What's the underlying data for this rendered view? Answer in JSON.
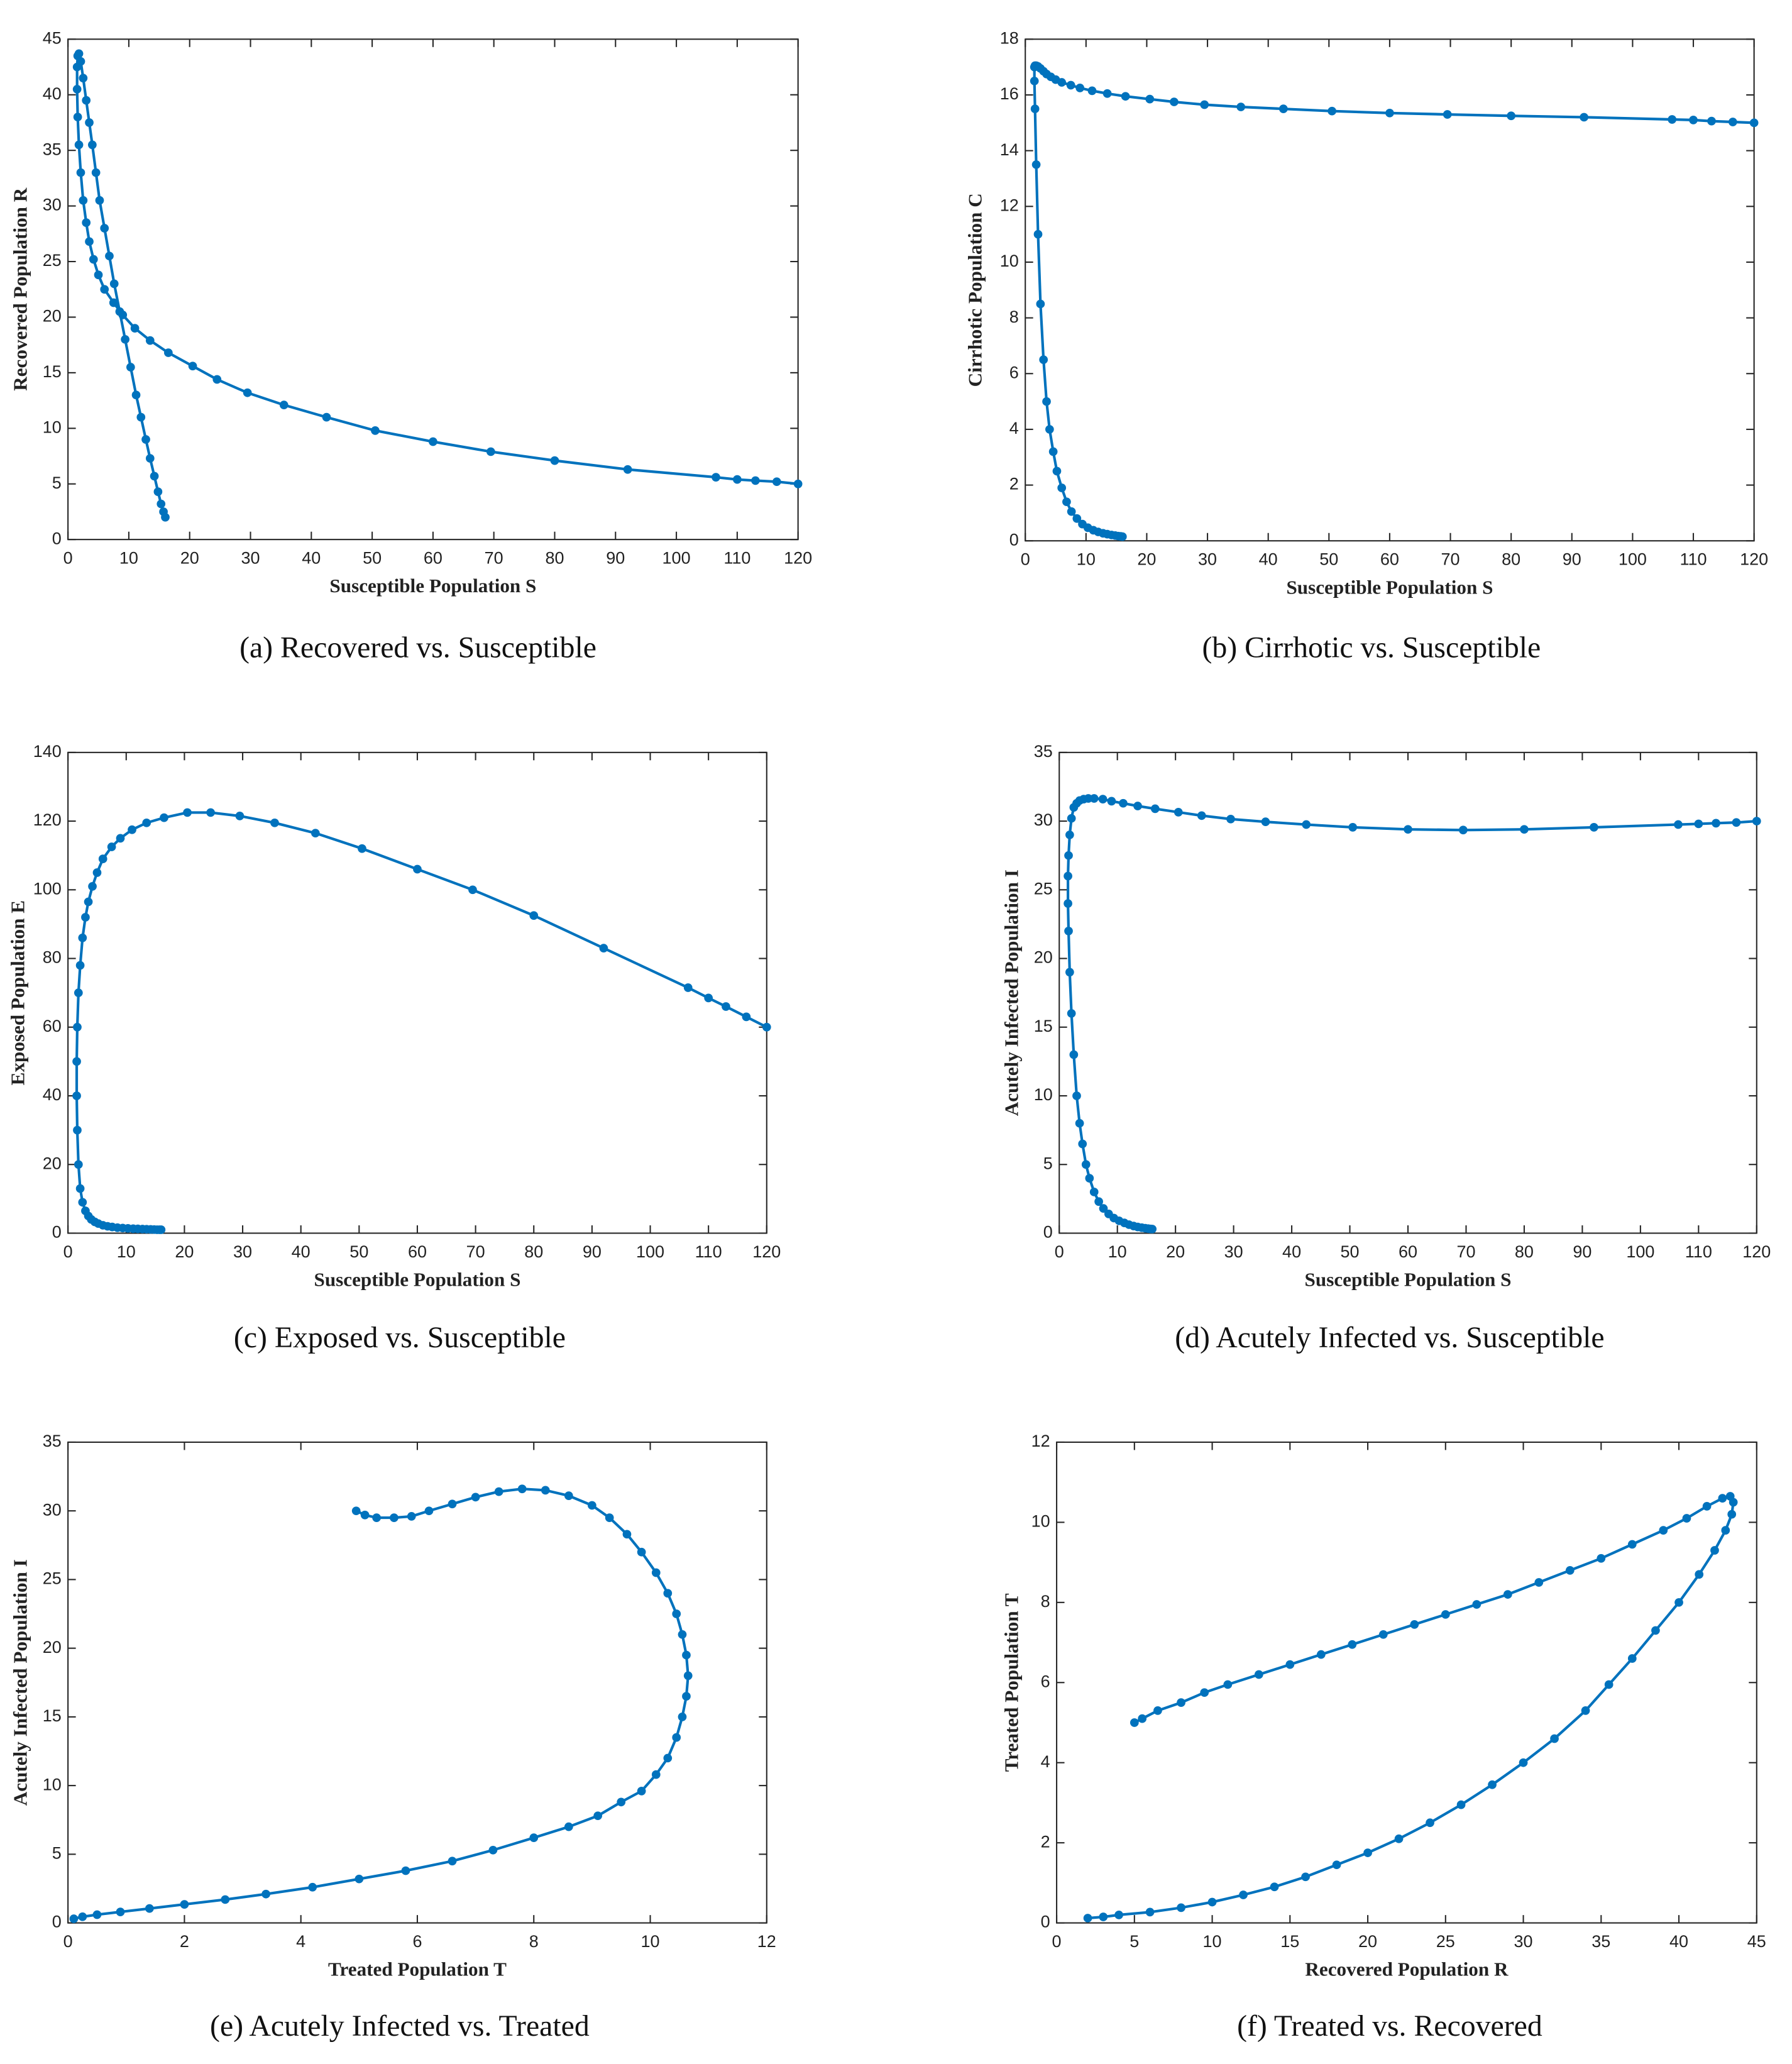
{
  "chart_data": [
    {
      "type": "line",
      "caption": "(a) Recovered vs. Susceptible",
      "x_label": "Susceptible Population S",
      "y_label": "Recovered Population R",
      "color": "#0072bd",
      "markers": true,
      "x": [
        120,
        116.5,
        113,
        110,
        106.5,
        92,
        80,
        69.5,
        60,
        50.5,
        42.5,
        35.5,
        29.5,
        24.5,
        20.5,
        16.5,
        13.5,
        11,
        9,
        7.5,
        6,
        5,
        4.2,
        3.5,
        3,
        2.5,
        2.1,
        1.8,
        1.6,
        1.5,
        1.5,
        1.6,
        1.8,
        2.1,
        2.5,
        3,
        3.5,
        4,
        4.6,
        5.2,
        6,
        6.8,
        7.6,
        8.5,
        9.4,
        10.3,
        11.2,
        12,
        12.8,
        13.5,
        14.2,
        14.8,
        15.3,
        15.7,
        16
      ],
      "values": [
        5,
        5.2,
        5.3,
        5.4,
        5.6,
        6.3,
        7.1,
        7.9,
        8.8,
        9.8,
        11,
        12.1,
        13.2,
        14.4,
        15.6,
        16.8,
        17.9,
        19,
        20.2,
        21.3,
        22.5,
        23.8,
        25.2,
        26.8,
        28.5,
        30.5,
        33,
        35.5,
        38,
        40.5,
        42.5,
        43.5,
        43.7,
        43,
        41.5,
        39.5,
        37.5,
        35.5,
        33,
        30.5,
        28,
        25.5,
        23,
        20.5,
        18,
        15.5,
        13,
        11,
        9,
        7.3,
        5.7,
        4.3,
        3.2,
        2.5,
        2
      ],
      "xlim": [
        0,
        120
      ],
      "xticks": [
        0,
        10,
        20,
        30,
        40,
        50,
        60,
        70,
        80,
        90,
        100,
        110,
        120
      ],
      "ylim": [
        0,
        45
      ],
      "yticks": [
        0,
        5,
        10,
        15,
        20,
        25,
        30,
        35,
        40,
        45
      ]
    },
    {
      "type": "line",
      "caption": "(b) Cirrhotic vs. Susceptible",
      "x_label": "Susceptible Population S",
      "y_label": "Cirrhotic Population C",
      "color": "#0072bd",
      "markers": true,
      "x": [
        120,
        116.5,
        113,
        110,
        106.5,
        92,
        80,
        69.5,
        60,
        50.5,
        42.5,
        35.5,
        29.5,
        24.5,
        20.5,
        16.5,
        13.5,
        11,
        9,
        7.5,
        6,
        5,
        4.2,
        3.5,
        3,
        2.5,
        2.1,
        1.8,
        1.6,
        1.5,
        1.5,
        1.6,
        1.8,
        2.1,
        2.5,
        3,
        3.5,
        4,
        4.6,
        5.2,
        6,
        6.8,
        7.6,
        8.5,
        9.4,
        10.3,
        11.2,
        12,
        12.8,
        13.5,
        14.2,
        14.8,
        15.3,
        15.7,
        16
      ],
      "values": [
        15,
        15.03,
        15.06,
        15.1,
        15.12,
        15.2,
        15.25,
        15.3,
        15.35,
        15.42,
        15.5,
        15.57,
        15.65,
        15.75,
        15.85,
        15.95,
        16.05,
        16.15,
        16.25,
        16.35,
        16.45,
        16.55,
        16.65,
        16.75,
        16.85,
        16.95,
        17.02,
        17.05,
        17.05,
        17,
        16.5,
        15.5,
        13.5,
        11,
        8.5,
        6.5,
        5,
        4,
        3.2,
        2.5,
        1.9,
        1.4,
        1.05,
        0.8,
        0.6,
        0.47,
        0.38,
        0.32,
        0.27,
        0.24,
        0.21,
        0.19,
        0.17,
        0.16,
        0.15
      ],
      "xlim": [
        0,
        120
      ],
      "xticks": [
        0,
        10,
        20,
        30,
        40,
        50,
        60,
        70,
        80,
        90,
        100,
        110,
        120
      ],
      "ylim": [
        0,
        18
      ],
      "yticks": [
        0,
        2,
        4,
        6,
        8,
        10,
        12,
        14,
        16,
        18
      ]
    },
    {
      "type": "line",
      "caption": "(c) Exposed vs. Susceptible",
      "x_label": "Susceptible Population S",
      "y_label": "Exposed Population E",
      "color": "#0072bd",
      "markers": true,
      "x": [
        120,
        116.5,
        113,
        110,
        106.5,
        92,
        80,
        69.5,
        60,
        50.5,
        42.5,
        35.5,
        29.5,
        24.5,
        20.5,
        16.5,
        13.5,
        11,
        9,
        7.5,
        6,
        5,
        4.2,
        3.5,
        3,
        2.5,
        2.1,
        1.8,
        1.6,
        1.5,
        1.5,
        1.6,
        1.8,
        2.1,
        2.5,
        3,
        3.5,
        4,
        4.6,
        5.2,
        6,
        6.8,
        7.6,
        8.5,
        9.4,
        10.3,
        11.2,
        12,
        12.8,
        13.5,
        14.2,
        14.8,
        15.3,
        15.7,
        16
      ],
      "values": [
        60,
        63,
        66,
        68.5,
        71.5,
        83,
        92.5,
        100,
        106,
        112,
        116.5,
        119.5,
        121.5,
        122.5,
        122.5,
        121,
        119.5,
        117.5,
        115,
        112.5,
        109,
        105,
        101,
        96.5,
        92,
        86,
        78,
        70,
        60,
        50,
        40,
        30,
        20,
        13,
        9,
        6.5,
        5,
        4,
        3.3,
        2.8,
        2.3,
        2,
        1.8,
        1.6,
        1.5,
        1.4,
        1.3,
        1.25,
        1.2,
        1.15,
        1.1,
        1.05,
        1,
        1,
        1
      ],
      "xlim": [
        0,
        120
      ],
      "xticks": [
        0,
        10,
        20,
        30,
        40,
        50,
        60,
        70,
        80,
        90,
        100,
        110,
        120
      ],
      "ylim": [
        0,
        140
      ],
      "yticks": [
        0,
        20,
        40,
        60,
        80,
        100,
        120,
        140
      ]
    },
    {
      "type": "line",
      "caption": "(d) Acutely Infected vs. Susceptible",
      "x_label": "Susceptible Population S",
      "y_label": "Acutely Infected Population I",
      "color": "#0072bd",
      "markers": true,
      "x": [
        120,
        116.5,
        113,
        110,
        106.5,
        92,
        80,
        69.5,
        60,
        50.5,
        42.5,
        35.5,
        29.5,
        24.5,
        20.5,
        16.5,
        13.5,
        11,
        9,
        7.5,
        6,
        5,
        4.2,
        3.5,
        3,
        2.5,
        2.1,
        1.8,
        1.6,
        1.5,
        1.5,
        1.6,
        1.8,
        2.1,
        2.5,
        3,
        3.5,
        4,
        4.6,
        5.2,
        6,
        6.8,
        7.6,
        8.5,
        9.4,
        10.3,
        11.2,
        12,
        12.8,
        13.5,
        14.2,
        14.8,
        15.3,
        15.7,
        16
      ],
      "values": [
        30,
        29.9,
        29.85,
        29.8,
        29.75,
        29.55,
        29.4,
        29.35,
        29.4,
        29.55,
        29.75,
        29.95,
        30.15,
        30.4,
        30.65,
        30.9,
        31.1,
        31.3,
        31.45,
        31.6,
        31.65,
        31.65,
        31.6,
        31.5,
        31.3,
        31,
        30.2,
        29,
        27.5,
        26,
        24,
        22,
        19,
        16,
        13,
        10,
        8,
        6.5,
        5,
        4,
        3,
        2.3,
        1.8,
        1.4,
        1.1,
        0.9,
        0.75,
        0.62,
        0.52,
        0.45,
        0.4,
        0.36,
        0.33,
        0.31,
        0.3
      ],
      "xlim": [
        0,
        120
      ],
      "xticks": [
        0,
        10,
        20,
        30,
        40,
        50,
        60,
        70,
        80,
        90,
        100,
        110,
        120
      ],
      "ylim": [
        0,
        35
      ],
      "yticks": [
        0,
        5,
        10,
        15,
        20,
        25,
        30,
        35
      ]
    },
    {
      "type": "line",
      "caption": "(e) Acutely Infected vs. Treated",
      "x_label": "Treated Population T",
      "y_label": "Acutely Infected Population I",
      "color": "#0072bd",
      "markers": true,
      "x": [
        4.95,
        5.1,
        5.3,
        5.6,
        5.9,
        6.2,
        6.6,
        7.0,
        7.4,
        7.8,
        8.2,
        8.6,
        9.0,
        9.3,
        9.6,
        9.85,
        10.1,
        10.3,
        10.45,
        10.55,
        10.62,
        10.65,
        10.62,
        10.55,
        10.45,
        10.3,
        10.1,
        9.85,
        9.5,
        9.1,
        8.6,
        8.0,
        7.3,
        6.6,
        5.8,
        5.0,
        4.2,
        3.4,
        2.7,
        2.0,
        1.4,
        0.9,
        0.5,
        0.25,
        0.1
      ],
      "values": [
        30,
        29.7,
        29.5,
        29.5,
        29.6,
        30,
        30.5,
        31,
        31.4,
        31.6,
        31.5,
        31.1,
        30.4,
        29.5,
        28.3,
        27,
        25.5,
        24,
        22.5,
        21,
        19.5,
        18,
        16.5,
        15,
        13.5,
        12,
        10.8,
        9.6,
        8.8,
        7.8,
        7,
        6.2,
        5.3,
        4.5,
        3.8,
        3.2,
        2.6,
        2.1,
        1.7,
        1.35,
        1.05,
        0.8,
        0.6,
        0.45,
        0.3
      ],
      "xlim": [
        0,
        12
      ],
      "xticks": [
        0,
        2,
        4,
        6,
        8,
        10,
        12
      ],
      "ylim": [
        0,
        35
      ],
      "yticks": [
        0,
        5,
        10,
        15,
        20,
        25,
        30,
        35
      ]
    },
    {
      "type": "line",
      "caption": "(f) Treated vs. Recovered",
      "x_label": "Recovered Population R",
      "y_label": "Treated Population T",
      "color": "#0072bd",
      "markers": true,
      "x": [
        5,
        5.5,
        6.5,
        8,
        9.5,
        11,
        13,
        15,
        17,
        19,
        21,
        23,
        25,
        27,
        29,
        31,
        33,
        35,
        37,
        39,
        40.5,
        41.8,
        42.8,
        43.3,
        43.5,
        43.4,
        43,
        42.3,
        41.3,
        40,
        38.5,
        37,
        35.5,
        34,
        32,
        30,
        28,
        26,
        24,
        22,
        20,
        18,
        16,
        14,
        12,
        10,
        8,
        6,
        4,
        3,
        2
      ],
      "values": [
        5,
        5.1,
        5.3,
        5.5,
        5.75,
        5.95,
        6.2,
        6.45,
        6.7,
        6.95,
        7.2,
        7.45,
        7.7,
        7.95,
        8.2,
        8.5,
        8.8,
        9.1,
        9.45,
        9.8,
        10.1,
        10.4,
        10.6,
        10.65,
        10.5,
        10.2,
        9.8,
        9.3,
        8.7,
        8.0,
        7.3,
        6.6,
        5.95,
        5.3,
        4.6,
        4.0,
        3.45,
        2.95,
        2.5,
        2.1,
        1.75,
        1.45,
        1.15,
        0.9,
        0.7,
        0.52,
        0.38,
        0.27,
        0.2,
        0.15,
        0.12
      ],
      "xlim": [
        0,
        45
      ],
      "xticks": [
        0,
        5,
        10,
        15,
        20,
        25,
        30,
        35,
        40,
        45
      ],
      "ylim": [
        0,
        12
      ],
      "yticks": [
        0,
        2,
        4,
        6,
        8,
        10,
        12
      ]
    }
  ]
}
